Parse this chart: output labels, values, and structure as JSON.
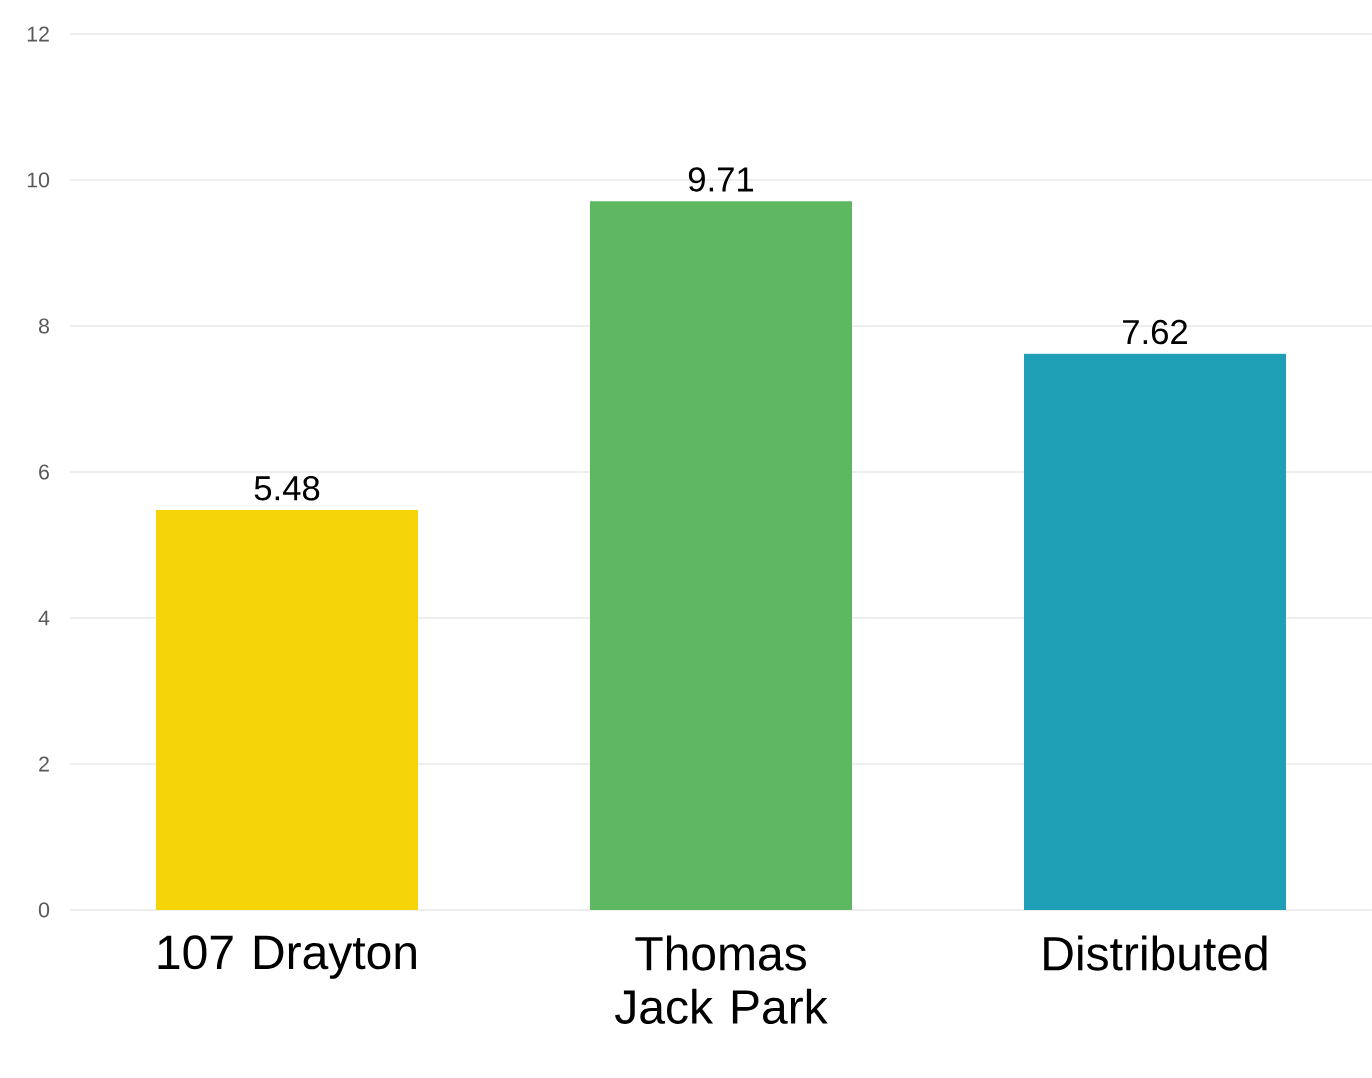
{
  "chart_data": {
    "type": "bar",
    "categories": [
      "107 Drayton",
      "Thomas Jack Park",
      "Distributed"
    ],
    "values": [
      5.48,
      9.71,
      7.62
    ],
    "colors": [
      "#f5d507",
      "#5eb862",
      "#1f9fb5"
    ],
    "ylim": [
      0,
      12
    ],
    "yticks": [
      0,
      2,
      4,
      6,
      8,
      10,
      12
    ],
    "grid": "y",
    "data_labels": true
  }
}
